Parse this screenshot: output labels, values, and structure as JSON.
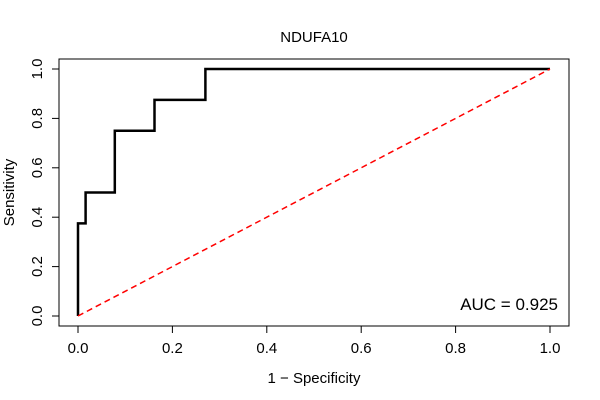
{
  "chart_data": {
    "type": "line",
    "title": "NDUFA10",
    "xlabel": "1 − Specificity",
    "ylabel": "Sensitivity",
    "xlim": [
      0,
      1
    ],
    "ylim": [
      0,
      1
    ],
    "xticks": [
      "0.0",
      "0.2",
      "0.4",
      "0.6",
      "0.8",
      "1.0"
    ],
    "yticks": [
      "0.0",
      "0.2",
      "0.4",
      "0.6",
      "0.8",
      "1.0"
    ],
    "grid": false,
    "series": [
      {
        "color": "#000000",
        "style": "solid",
        "x": [
          0,
          0,
          0.016,
          0.016,
          0.078,
          0.078,
          0.162,
          0.162,
          0.27,
          0.27,
          1.0
        ],
        "y": [
          0,
          0.375,
          0.375,
          0.5,
          0.5,
          0.75,
          0.75,
          0.875,
          0.875,
          1.0,
          1.0
        ]
      },
      {
        "color": "#ff0000",
        "style": "dashed",
        "x": [
          0,
          1
        ],
        "y": [
          0,
          1
        ]
      }
    ],
    "annotation": "AUC = 0.925"
  }
}
